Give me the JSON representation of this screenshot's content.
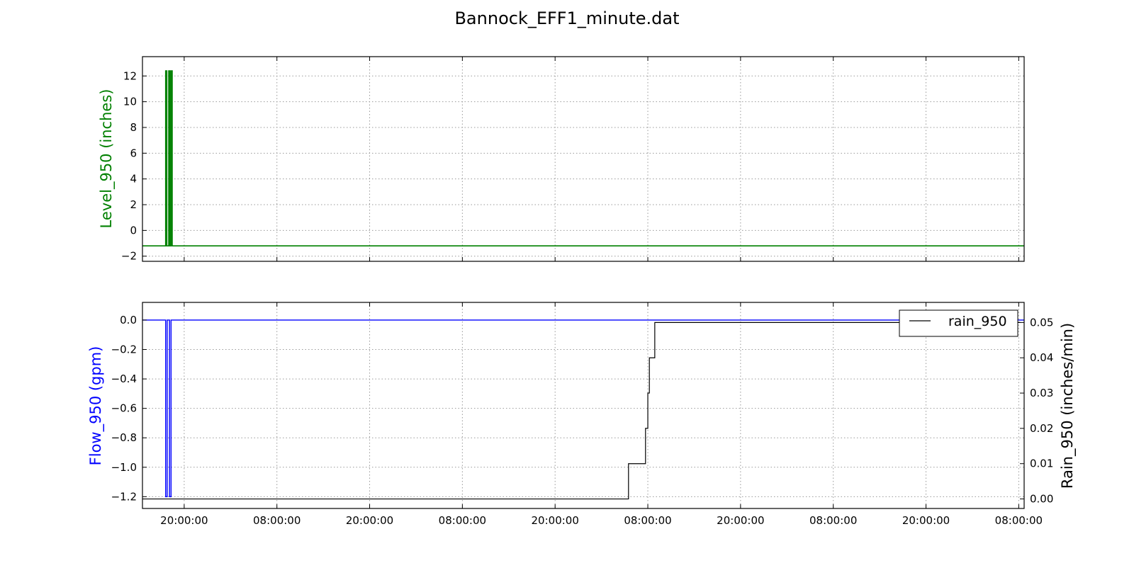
{
  "title": "Bannock_EFF1_minute.dat",
  "x_tick_labels": [
    "20:00:00",
    "08:00:00",
    "20:00:00",
    "08:00:00",
    "20:00:00",
    "08:00:00",
    "20:00:00",
    "08:00:00",
    "20:00:00",
    "08:00:00"
  ],
  "colors": {
    "level": "#008000",
    "flow": "#0000ff",
    "rain": "#000000",
    "grid": "#999999"
  },
  "chart_data": [
    {
      "type": "line",
      "ylabel": "Level_950 (inches)",
      "ylim": [
        -2.4,
        13.5
      ],
      "yticks": [
        -2,
        0,
        2,
        4,
        6,
        8,
        10,
        12
      ],
      "x_unit": "hours since start of the axis",
      "xlim": [
        0,
        114.1
      ],
      "xticks": [
        5.4,
        17.4,
        29.4,
        41.4,
        53.4,
        65.4,
        77.4,
        89.4,
        101.4,
        113.4
      ],
      "grid": true,
      "series": [
        {
          "name": "",
          "color": "#008000",
          "x": [
            0,
            3.0,
            3.0,
            3.15,
            3.15,
            3.4,
            3.4,
            3.55,
            3.55,
            3.7,
            3.7,
            3.85,
            3.85,
            114.1
          ],
          "y": [
            -1.2,
            -1.2,
            12.4,
            12.4,
            -1.2,
            -1.2,
            12.4,
            12.4,
            -1.2,
            -1.2,
            12.4,
            12.4,
            -1.2,
            -1.2
          ]
        }
      ]
    },
    {
      "type": "line",
      "ylabel": "Flow_950 (gpm)",
      "ylim": [
        -1.28,
        0.12
      ],
      "yticks": [
        0.0,
        -0.2,
        -0.4,
        -0.6,
        -0.8,
        -1.0,
        -1.2
      ],
      "y2label": "Rain_950 (inches/min)",
      "y2lim": [
        -0.0027,
        0.0557
      ],
      "y2ticks": [
        0.0,
        0.01,
        0.02,
        0.03,
        0.04,
        0.05
      ],
      "xlim": [
        0,
        114.1
      ],
      "xticks": [
        5.4,
        17.4,
        29.4,
        41.4,
        53.4,
        65.4,
        77.4,
        89.4,
        101.4,
        113.4
      ],
      "grid": true,
      "legend": {
        "entries": [
          "rain_950"
        ],
        "placement": "top-right"
      },
      "series": [
        {
          "name": "",
          "color": "#0000ff",
          "axis": "left",
          "x": [
            0,
            3.0,
            3.0,
            3.2,
            3.2,
            3.5,
            3.5,
            3.7,
            3.7,
            114.1
          ],
          "y": [
            0.0,
            0.0,
            -1.2,
            -1.2,
            0.0,
            0.0,
            -1.2,
            -1.2,
            0.0,
            0.0
          ]
        },
        {
          "name": "rain_950",
          "color": "#000000",
          "axis": "right",
          "x": [
            0,
            3.0,
            3.0,
            3.4,
            3.4,
            62.9,
            62.9,
            65.1,
            65.1,
            65.4,
            65.4,
            65.6,
            65.6,
            65.8,
            65.8,
            66.3,
            66.3,
            109.5,
            109.5,
            110.4,
            110.4,
            113.6
          ],
          "y": [
            0.0,
            0.0,
            0.0,
            0.0,
            0.0,
            0.0,
            0.01,
            0.01,
            0.02,
            0.02,
            0.03,
            0.03,
            0.04,
            0.04,
            0.04,
            0.04,
            0.05,
            0.05,
            0.05,
            0.05,
            0.05,
            0.05
          ]
        }
      ]
    }
  ]
}
